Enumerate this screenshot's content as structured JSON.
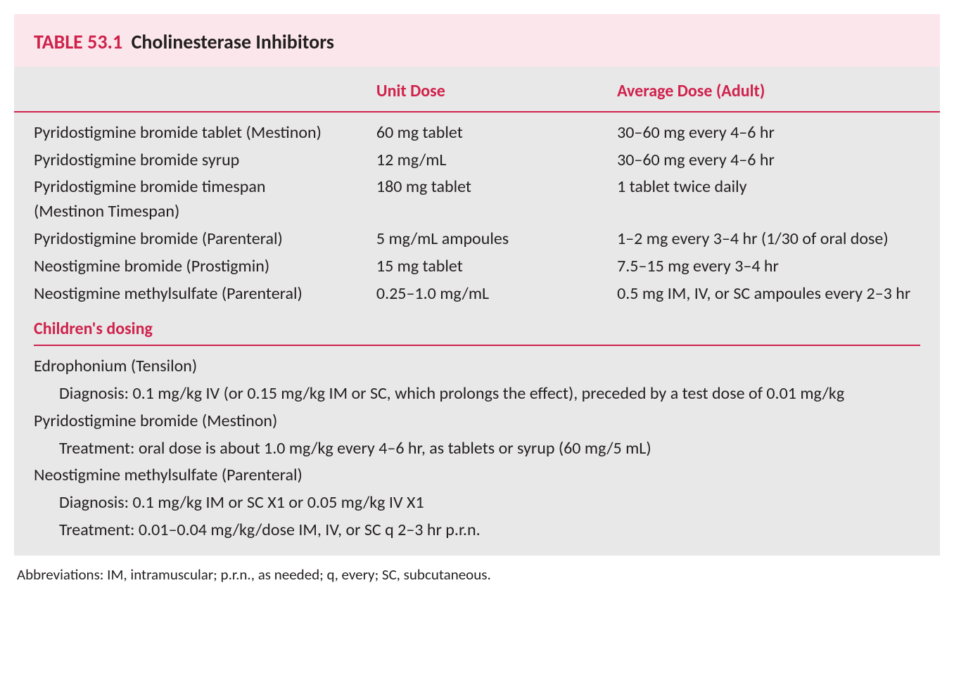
{
  "title_number": "TABLE 53.1",
  "title_text": "Cholinesterase Inhibitors",
  "columns": [
    "",
    "Unit Dose",
    "Average Dose (Adult)"
  ],
  "col_widths": [
    "37%",
    "26%",
    "37%"
  ],
  "rows": [
    {
      "drug": "Pyridostigmine bromide tablet (Mestinon)",
      "unit": "60 mg tablet",
      "avg": "30–60 mg every 4–6 hr"
    },
    {
      "drug": "Pyridostigmine bromide syrup",
      "unit": "12 mg/mL",
      "avg": "30–60 mg every 4–6 hr"
    },
    {
      "drug": "Pyridostigmine bromide timespan (Mestinon Timespan)",
      "unit": "180 mg tablet",
      "avg": "1 tablet twice daily"
    },
    {
      "drug": "Pyridostigmine bromide (Parenteral)",
      "unit": "5 mg/mL ampoules",
      "avg": "1–2 mg every 3–4 hr (1/30 of oral dose)"
    },
    {
      "drug": "Neostigmine bromide (Prostigmin)",
      "unit": "15 mg tablet",
      "avg": "7.5–15 mg every 3–4 hr"
    },
    {
      "drug": "Neostigmine methylsulfate (Parenteral)",
      "unit": "0.25–1.0 mg/mL",
      "avg": "0.5 mg IM, IV, or SC ampoules every 2–3 hr"
    }
  ],
  "section_header": "Children's dosing",
  "children_lines": [
    {
      "text": "Edrophonium (Tensilon)",
      "indent": false
    },
    {
      "text": "Diagnosis: 0.1 mg/kg IV (or 0.15 mg/kg IM or SC, which prolongs the effect), preceded by a test dose of 0.01 mg/kg",
      "indent": true
    },
    {
      "text": "Pyridostigmine bromide (Mestinon)",
      "indent": false
    },
    {
      "text": "Treatment: oral dose is about 1.0 mg/kg every 4–6 hr, as tablets or syrup (60 mg/5 mL)",
      "indent": true
    },
    {
      "text": "Neostigmine methylsulfate (Parenteral)",
      "indent": false
    },
    {
      "text": "Diagnosis: 0.1 mg/kg IM or SC X1 or 0.05 mg/kg IV X1",
      "indent": true
    },
    {
      "text": "Treatment: 0.01–0.04 mg/kg/dose IM, IV, or SC q 2–3 hr p.r.n.",
      "indent": true
    }
  ],
  "footnote": "Abbreviations: IM, intramuscular; p.r.n., as needed; q, every; SC, subcutaneous.",
  "colors": {
    "title_bg": "#fbe7eb",
    "table_bg": "#e8e8e8",
    "accent": "#d0214b",
    "text": "#231f20"
  },
  "font_sizes": {
    "title": 28,
    "body": 24,
    "footnote": 21
  }
}
